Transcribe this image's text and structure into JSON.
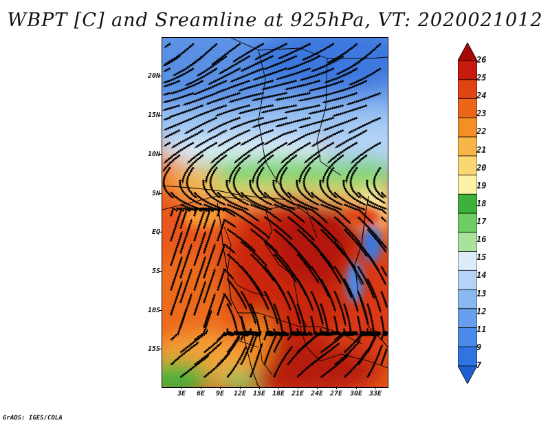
{
  "title": "WBPT [C] and Sreamline at 925hPa, VT: 2020021012",
  "credit": "GrADS: IGES/COLA",
  "map": {
    "lat_labels": [
      "20N",
      "15N",
      "10N",
      "5N",
      "EQ",
      "5S",
      "10S",
      "15S"
    ],
    "lon_labels": [
      "3E",
      "6E",
      "9E",
      "12E",
      "15E",
      "18E",
      "21E",
      "24E",
      "27E",
      "30E",
      "33E"
    ],
    "lat_range": [
      -20,
      24
    ],
    "lon_range": [
      -0.5,
      34.5
    ]
  },
  "colorbar": {
    "labels": [
      "7",
      "9",
      "11",
      "12",
      "13",
      "14",
      "15",
      "16",
      "17",
      "18",
      "19",
      "20",
      "21",
      "22",
      "23",
      "24",
      "25",
      "26"
    ],
    "colors": [
      "#1f5fd6",
      "#2f74e0",
      "#4a8ae8",
      "#679fee",
      "#8cb8f2",
      "#b4d3f6",
      "#dcedf9",
      "#a8e29c",
      "#6fce63",
      "#3cb23a",
      "#fdf1a6",
      "#fbd675",
      "#f8b547",
      "#f28f26",
      "#eb6618",
      "#e04414",
      "#c8190e",
      "#a50a06"
    ]
  }
}
